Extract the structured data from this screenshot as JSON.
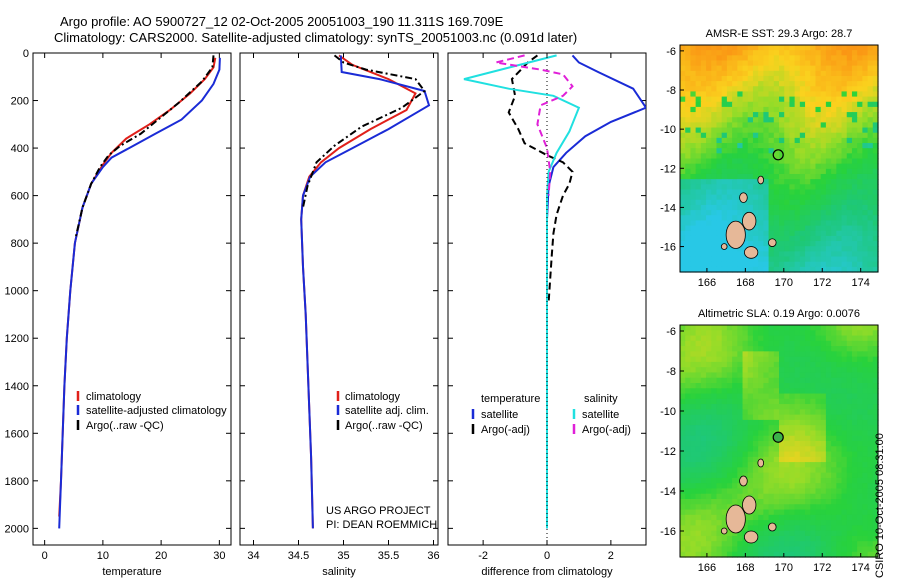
{
  "title_line1": "Argo profile: AO 5900727_12 02-Oct-2005 20051003_190 11.311S 169.709E",
  "title_line2": "Climatology: CARS2000. Satellite-adjusted climatology: synTS_20051003.nc (0.091d later)",
  "credit_line1": "US ARGO PROJECT",
  "credit_line2": "PI: DEAN ROEMMICH",
  "timestamp_label": "CSIRO 10-Oct-2005 08:31:00",
  "colors": {
    "climatology": "#e0201a",
    "satellite": "#1a2bd6",
    "argo": "#000000",
    "cyan": "#20e0e0",
    "magenta": "#e020d8"
  },
  "chart_data": [
    {
      "type": "line",
      "id": "temperature",
      "xlabel": "temperature",
      "ylabel": "",
      "xlim": [
        -2,
        32
      ],
      "ylim": [
        2070,
        0
      ],
      "xticks": [
        0,
        10,
        20,
        30
      ],
      "yticks": [
        0,
        200,
        400,
        600,
        800,
        1000,
        1200,
        1400,
        1600,
        1800,
        2000
      ],
      "legend": [
        "climatology",
        "satellite-adjusted climatology",
        "Argo(..raw -QC)"
      ],
      "legend_position": "bottom-right",
      "series": [
        {
          "name": "climatology",
          "style": "solid",
          "color": "#e0201a",
          "x": [
            29.3,
            29.0,
            27.5,
            25.0,
            21.5,
            18.0,
            14.0,
            11.5,
            10.0,
            8.0,
            6.5,
            5.2,
            4.4,
            3.8,
            3.4,
            3.1,
            2.8,
            2.5
          ],
          "y": [
            20,
            60,
            110,
            170,
            240,
            300,
            360,
            420,
            470,
            550,
            650,
            800,
            1000,
            1200,
            1400,
            1600,
            1800,
            1950
          ]
        },
        {
          "name": "satellite-adjusted climatology",
          "style": "solid",
          "color": "#1a2bd6",
          "x": [
            30.1,
            30.0,
            29.0,
            27.0,
            23.5,
            19.0,
            14.5,
            11.5,
            10.0,
            8.0,
            6.5,
            5.2,
            4.4,
            3.8,
            3.4,
            3.1,
            2.8,
            2.5
          ],
          "y": [
            20,
            70,
            130,
            200,
            280,
            340,
            400,
            440,
            480,
            550,
            650,
            800,
            1000,
            1200,
            1400,
            1600,
            1800,
            2000
          ]
        },
        {
          "name": "Argo(..raw -QC)",
          "style": "dashdot",
          "color": "#000000",
          "x": [
            29.0,
            28.8,
            27.0,
            23.0,
            19.0,
            16.5,
            13.0,
            11.0,
            9.5,
            8.0,
            6.5,
            5.3
          ],
          "y": [
            10,
            60,
            120,
            210,
            290,
            340,
            390,
            430,
            480,
            550,
            650,
            780
          ]
        }
      ]
    },
    {
      "type": "line",
      "id": "salinity",
      "xlabel": "salinity",
      "ylabel": "",
      "xlim": [
        33.85,
        36.05
      ],
      "ylim": [
        2070,
        0
      ],
      "xticks": [
        34,
        34.5,
        35,
        35.5,
        36
      ],
      "legend": [
        "climatology",
        "satellite adj. clim.",
        "Argo(..raw -QC)"
      ],
      "legend_position": "bottom-right",
      "series": [
        {
          "name": "climatology",
          "style": "solid",
          "color": "#e0201a",
          "x": [
            34.95,
            35.1,
            35.5,
            35.8,
            35.7,
            35.3,
            34.95,
            34.75,
            34.62,
            34.55,
            34.53,
            34.55,
            34.58,
            34.6,
            34.62,
            34.64,
            34.66
          ],
          "y": [
            10,
            50,
            110,
            170,
            240,
            320,
            400,
            460,
            520,
            600,
            700,
            900,
            1100,
            1300,
            1500,
            1700,
            2000
          ]
        },
        {
          "name": "satellite adj. clim.",
          "style": "solid",
          "color": "#1a2bd6",
          "x": [
            34.97,
            34.98,
            35.4,
            35.9,
            35.95,
            35.5,
            35.1,
            34.8,
            34.63,
            34.55,
            34.53,
            34.55,
            34.58,
            34.6,
            34.62,
            34.64,
            34.66
          ],
          "y": [
            10,
            80,
            110,
            160,
            220,
            320,
            400,
            460,
            520,
            600,
            700,
            900,
            1100,
            1300,
            1500,
            1700,
            2000
          ]
        },
        {
          "name": "Argo(..raw -QC)",
          "style": "dashdot",
          "color": "#000000",
          "x": [
            34.9,
            35.0,
            35.25,
            35.8,
            35.9,
            35.65,
            35.2,
            34.9,
            34.7,
            34.6,
            34.55
          ],
          "y": [
            10,
            40,
            70,
            110,
            160,
            230,
            310,
            390,
            460,
            560,
            650
          ]
        }
      ]
    },
    {
      "type": "line",
      "id": "difference",
      "xlabel": "difference from climatology",
      "ylabel": "",
      "xlim": [
        -3.1,
        3.1
      ],
      "ylim": [
        2070,
        0
      ],
      "xticks": [
        -2,
        0,
        2
      ],
      "legend_columns": [
        "temperature",
        "salinity"
      ],
      "legend": [
        "satellite",
        "Argo(-adj)",
        "satellite",
        "Argo(-adj)"
      ],
      "legend_position": "bottom-right",
      "series": [
        {
          "name": "satellite",
          "group": "temperature",
          "style": "solid",
          "color": "#1a2bd6",
          "x": [
            0.8,
            1.0,
            1.6,
            2.7,
            3.1,
            2.0,
            1.2,
            0.6,
            0.2,
            0.05,
            0.0,
            0.0,
            0.0,
            0.0
          ],
          "y": [
            10,
            40,
            80,
            150,
            230,
            290,
            350,
            420,
            480,
            560,
            700,
            1000,
            1500,
            2000
          ]
        },
        {
          "name": "Argo(-adj)",
          "group": "temperature",
          "style": "dashed",
          "color": "#000000",
          "x": [
            -0.3,
            -0.6,
            -1.1,
            -1.0,
            -1.2,
            -0.9,
            -0.7,
            0.0,
            0.5,
            0.8,
            0.7,
            0.5,
            0.3,
            0.2,
            0.15,
            0.1,
            0.05
          ],
          "y": [
            10,
            40,
            110,
            180,
            250,
            320,
            380,
            430,
            460,
            500,
            550,
            600,
            680,
            760,
            850,
            950,
            1050
          ]
        },
        {
          "name": "satellite",
          "group": "salinity",
          "style": "solid",
          "color": "#20e0e0",
          "x": [
            0.3,
            -2.6,
            -1.2,
            0.2,
            1.0,
            0.7,
            0.3,
            0.05,
            0.0,
            0.0,
            0.0,
            0.0
          ],
          "y": [
            10,
            110,
            150,
            180,
            230,
            330,
            420,
            500,
            600,
            1000,
            1500,
            2000
          ]
        },
        {
          "name": "Argo(-adj)",
          "group": "salinity",
          "style": "dashed",
          "color": "#e020d8",
          "x": [
            -0.7,
            -1.6,
            -0.2,
            0.5,
            0.8,
            0.5,
            -0.2,
            -0.3,
            0.0,
            0.1,
            0.05
          ],
          "y": [
            10,
            40,
            70,
            90,
            140,
            180,
            220,
            300,
            400,
            500,
            600
          ]
        }
      ]
    },
    {
      "type": "heatmap",
      "id": "sst-map",
      "title": "AMSR-E SST: 29.3 Argo: 28.7",
      "xlim": [
        164.6,
        174.9
      ],
      "ylim": [
        -17.3,
        -5.7
      ],
      "xticks": [
        166,
        168,
        170,
        172,
        174
      ],
      "yticks": [
        -6,
        -8,
        -10,
        -12,
        -14,
        -16
      ],
      "argo_location": {
        "lon": 169.709,
        "lat": -11.311
      }
    },
    {
      "type": "heatmap",
      "id": "sla-map",
      "title": "Altimetric SLA: 0.19 Argo: 0.0076",
      "xlim": [
        164.6,
        174.9
      ],
      "ylim": [
        -17.3,
        -5.7
      ],
      "xticks": [
        166,
        168,
        170,
        172,
        174
      ],
      "yticks": [
        -6,
        -8,
        -10,
        -12,
        -14,
        -16
      ],
      "argo_location": {
        "lon": 169.709,
        "lat": -11.311
      }
    }
  ]
}
